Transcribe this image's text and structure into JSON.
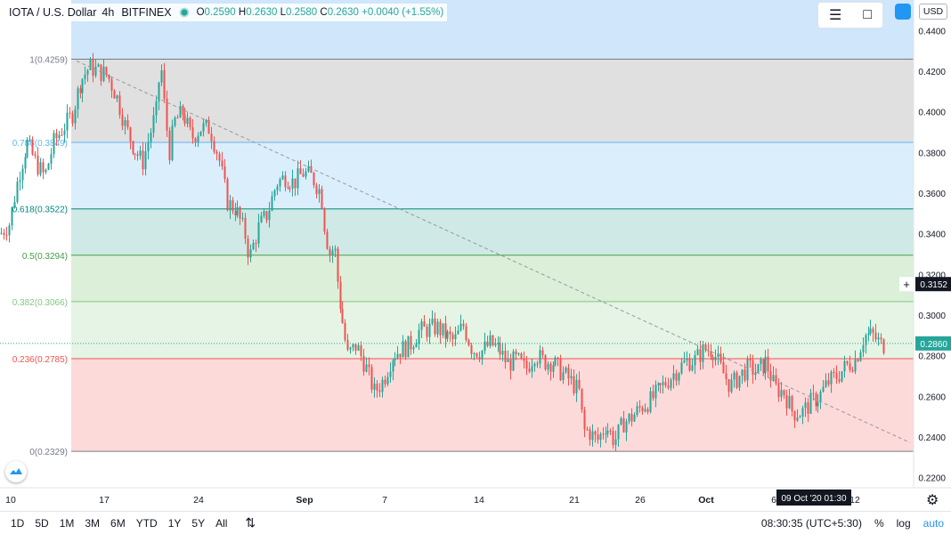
{
  "header": {
    "symbol": "IOTA / U.S. Dollar",
    "interval": "4h",
    "exchange": "BITFINEX",
    "open_label": "O",
    "open": "0.2590",
    "high_label": "H",
    "high": "0.2630",
    "low_label": "L",
    "low": "0.2580",
    "close_label": "C",
    "close": "0.2630",
    "change": "+0.0040 (+1.55%)"
  },
  "currency_button": "USD",
  "bottom": {
    "ranges": [
      "1D",
      "5D",
      "1M",
      "3M",
      "6M",
      "YTD",
      "1Y",
      "5Y",
      "All"
    ],
    "clock": "08:30:35 (UTC+5:30)",
    "percent": "%",
    "log": "log",
    "auto": "auto"
  },
  "crosshair_time": "09 Oct '20  01:30",
  "colors": {
    "up": "#26a69a",
    "down": "#ef5350",
    "price_label": "#131722",
    "last_price": "#26a69a"
  },
  "chart_data": {
    "type": "candlestick",
    "ylim": [
      0.215,
      0.455
    ],
    "y_ticks": [
      "0.2200",
      "0.2400",
      "0.2600",
      "0.2800",
      "0.3000",
      "0.3200",
      "0.3400",
      "0.3600",
      "0.3800",
      "0.4000",
      "0.4200",
      "0.4400"
    ],
    "x_ticks": [
      "10",
      "17",
      "24",
      "Sep",
      "7",
      "14",
      "21",
      "26",
      "Oct",
      "6",
      "12"
    ],
    "price_marker": "0.3152",
    "last_price": "0.2860",
    "fib_levels": [
      {
        "label": "1(0.4259)",
        "value": 0.4259,
        "label_color": "#787b86",
        "line": "#787b86",
        "fill": "#e0e0e0"
      },
      {
        "label": "0.786(0.3849)",
        "value": 0.3849,
        "label_color": "#64b5f6",
        "line": "#64b5f6",
        "fill": "#dbeefb"
      },
      {
        "label": "0.618(0.3522)",
        "value": 0.3522,
        "label_color": "#00897b",
        "line": "#00897b",
        "fill": "#cfe9e6"
      },
      {
        "label": "0.5(0.3294)",
        "value": 0.3294,
        "label_color": "#43a047",
        "line": "#43a047",
        "fill": "#dcefd9"
      },
      {
        "label": "0.382(0.3066)",
        "value": 0.3066,
        "label_color": "#81c784",
        "line": "#81c784",
        "fill": "#e5f4e4"
      },
      {
        "label": "0.236(0.2785)",
        "value": 0.2785,
        "label_color": "#ef5350",
        "line": "#ef5350",
        "fill": "#fddada"
      },
      {
        "label": "0(0.2329)",
        "value": 0.2329,
        "label_color": "#787b86",
        "line": "#787b86",
        "fill": ""
      }
    ],
    "trendline": {
      "start": [
        86,
        0.425
      ],
      "end": [
        1022,
        0.2372
      ]
    },
    "candles_anchor_path": [
      [
        0,
        0.34
      ],
      [
        10,
        0.345
      ],
      [
        20,
        0.368
      ],
      [
        30,
        0.385
      ],
      [
        40,
        0.375
      ],
      [
        50,
        0.368
      ],
      [
        60,
        0.385
      ],
      [
        70,
        0.392
      ],
      [
        80,
        0.398
      ],
      [
        90,
        0.415
      ],
      [
        100,
        0.422
      ],
      [
        110,
        0.42
      ],
      [
        120,
        0.418
      ],
      [
        130,
        0.408
      ],
      [
        140,
        0.393
      ],
      [
        150,
        0.382
      ],
      [
        160,
        0.375
      ],
      [
        170,
        0.392
      ],
      [
        175,
        0.4
      ],
      [
        180,
        0.425
      ],
      [
        185,
        0.398
      ],
      [
        190,
        0.38
      ],
      [
        195,
        0.395
      ],
      [
        205,
        0.4
      ],
      [
        215,
        0.387
      ],
      [
        225,
        0.392
      ],
      [
        235,
        0.392
      ],
      [
        245,
        0.378
      ],
      [
        255,
        0.355
      ],
      [
        265,
        0.352
      ],
      [
        275,
        0.34
      ],
      [
        280,
        0.328
      ],
      [
        290,
        0.343
      ],
      [
        300,
        0.35
      ],
      [
        310,
        0.365
      ],
      [
        320,
        0.368
      ],
      [
        330,
        0.365
      ],
      [
        340,
        0.37
      ],
      [
        350,
        0.368
      ],
      [
        360,
        0.36
      ],
      [
        365,
        0.34
      ],
      [
        370,
        0.33
      ],
      [
        375,
        0.334
      ],
      [
        380,
        0.31
      ],
      [
        390,
        0.28
      ],
      [
        400,
        0.285
      ],
      [
        410,
        0.275
      ],
      [
        420,
        0.262
      ],
      [
        430,
        0.268
      ],
      [
        440,
        0.28
      ],
      [
        450,
        0.283
      ],
      [
        460,
        0.285
      ],
      [
        470,
        0.292
      ],
      [
        480,
        0.293
      ],
      [
        490,
        0.294
      ],
      [
        500,
        0.29
      ],
      [
        510,
        0.287
      ],
      [
        520,
        0.295
      ],
      [
        530,
        0.283
      ],
      [
        540,
        0.282
      ],
      [
        550,
        0.286
      ],
      [
        560,
        0.283
      ],
      [
        570,
        0.276
      ],
      [
        580,
        0.278
      ],
      [
        590,
        0.273
      ],
      [
        600,
        0.281
      ],
      [
        610,
        0.277
      ],
      [
        620,
        0.277
      ],
      [
        630,
        0.272
      ],
      [
        640,
        0.268
      ],
      [
        650,
        0.262
      ],
      [
        655,
        0.243
      ],
      [
        660,
        0.243
      ],
      [
        670,
        0.238
      ],
      [
        680,
        0.246
      ],
      [
        690,
        0.238
      ],
      [
        700,
        0.247
      ],
      [
        710,
        0.25
      ],
      [
        720,
        0.255
      ],
      [
        730,
        0.258
      ],
      [
        740,
        0.263
      ],
      [
        750,
        0.268
      ],
      [
        760,
        0.273
      ],
      [
        770,
        0.277
      ],
      [
        780,
        0.278
      ],
      [
        790,
        0.283
      ],
      [
        800,
        0.283
      ],
      [
        810,
        0.273
      ],
      [
        820,
        0.265
      ],
      [
        830,
        0.27
      ],
      [
        840,
        0.274
      ],
      [
        850,
        0.272
      ],
      [
        860,
        0.277
      ],
      [
        870,
        0.264
      ],
      [
        880,
        0.262
      ],
      [
        890,
        0.252
      ],
      [
        900,
        0.252
      ],
      [
        910,
        0.257
      ],
      [
        920,
        0.26
      ],
      [
        930,
        0.267
      ],
      [
        940,
        0.27
      ],
      [
        950,
        0.275
      ],
      [
        960,
        0.278
      ],
      [
        970,
        0.29
      ],
      [
        980,
        0.29
      ],
      [
        990,
        0.285
      ],
      [
        995,
        0.286
      ]
    ]
  }
}
